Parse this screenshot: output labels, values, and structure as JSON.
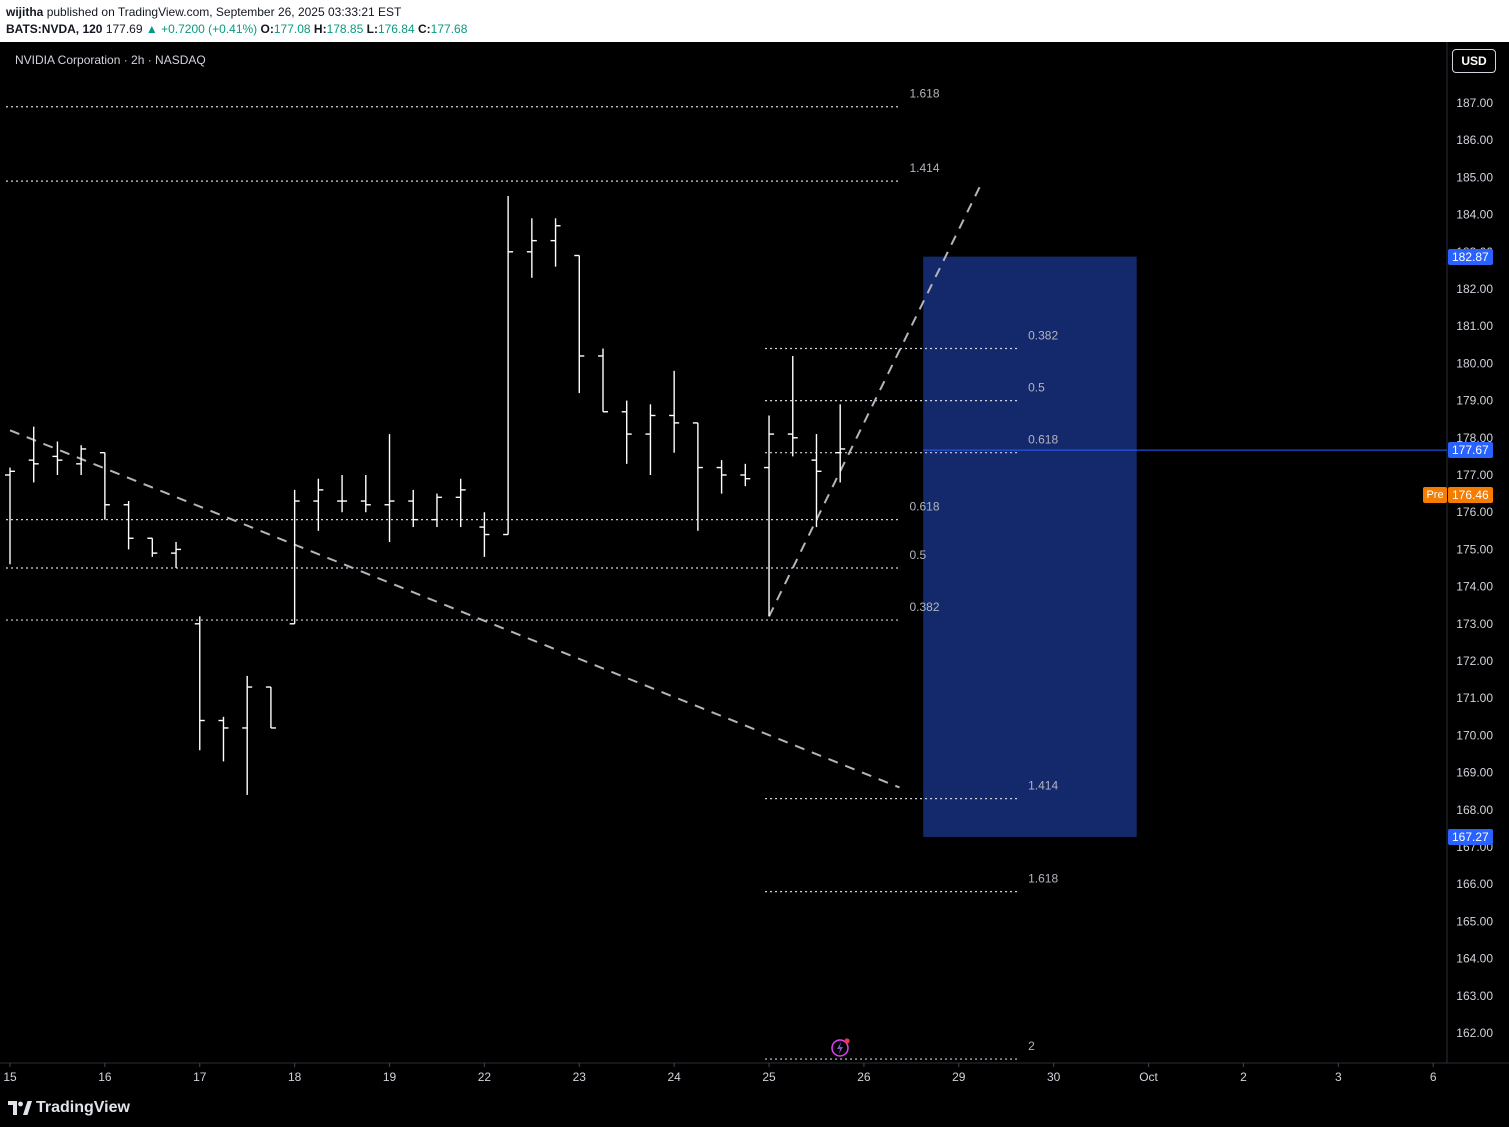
{
  "header": {
    "author": "wijitha",
    "published_text": "published on TradingView.com, September 26, 2025 03:33:21 EST",
    "symbol": "BATS:NVDA, 120",
    "last": "177.69",
    "change_arrow": "▲",
    "change": "+0.7200 (+0.41%)",
    "o_label": "O:",
    "o": "177.08",
    "h_label": "H:",
    "h": "178.85",
    "l_label": "L:",
    "l": "176.84",
    "c_label": "C:",
    "c": "177.68"
  },
  "legend_title": "NVIDIA Corporation · 2h · NASDAQ",
  "currency_button": "USD",
  "brand": "TradingView",
  "colors": {
    "up": "#089981",
    "box": "#14296b",
    "label_blue": "#2962ff",
    "pre_orange": "#f57c00"
  },
  "price_labels": {
    "box_top": "182.87",
    "current": "177.67",
    "pre_tag": "Pre",
    "pre": "176.46",
    "box_bottom": "167.27"
  },
  "chart_data": {
    "type": "ohlc",
    "timeframe": "2h",
    "ylim": [
      161.5,
      188.0
    ],
    "y_ticks": [
      162,
      163,
      164,
      165,
      166,
      167,
      168,
      169,
      170,
      171,
      172,
      173,
      174,
      175,
      176,
      177,
      178,
      179,
      180,
      181,
      182,
      183,
      184,
      185,
      186,
      187
    ],
    "y_tick_labels": [
      "162.00",
      "163.00",
      "164.00",
      "165.00",
      "166.00",
      "167.00",
      "168.00",
      "169.00",
      "170.00",
      "171.00",
      "172.00",
      "173.00",
      "174.00",
      "175.00",
      "176.00",
      "177.00",
      "178.00",
      "179.00",
      "180.00",
      "181.00",
      "182.00",
      "183.00",
      "184.00",
      "185.00",
      "186.00",
      "187.00"
    ],
    "x_ticks": [
      {
        "i": 0,
        "label": "15"
      },
      {
        "i": 4,
        "label": "16"
      },
      {
        "i": 8,
        "label": "17"
      },
      {
        "i": 12,
        "label": "18"
      },
      {
        "i": 16,
        "label": "19"
      },
      {
        "i": 20,
        "label": "22"
      },
      {
        "i": 24,
        "label": "23"
      },
      {
        "i": 28,
        "label": "24"
      },
      {
        "i": 32,
        "label": "25"
      },
      {
        "i": 36,
        "label": "26"
      },
      {
        "i": 40,
        "label": "29"
      },
      {
        "i": 44,
        "label": "30"
      },
      {
        "i": 48,
        "label": "Oct"
      },
      {
        "i": 52,
        "label": "2"
      },
      {
        "i": 56,
        "label": "3"
      },
      {
        "i": 60,
        "label": "6"
      }
    ],
    "bars": [
      {
        "o": 177.0,
        "h": 177.2,
        "l": 174.6,
        "c": 177.1
      },
      {
        "o": 177.4,
        "h": 178.3,
        "l": 176.8,
        "c": 177.3
      },
      {
        "o": 177.5,
        "h": 177.9,
        "l": 177.0,
        "c": 177.4
      },
      {
        "o": 177.3,
        "h": 177.8,
        "l": 177.0,
        "c": 177.7
      },
      {
        "o": 177.6,
        "h": 177.5,
        "l": 175.8,
        "c": 176.2
      },
      {
        "o": 176.2,
        "h": 176.3,
        "l": 175.0,
        "c": 175.3
      },
      {
        "o": 175.3,
        "h": 175.2,
        "l": 174.8,
        "c": 174.9
      },
      {
        "o": 174.9,
        "h": 175.2,
        "l": 174.5,
        "c": 175.0
      },
      {
        "o": 173.0,
        "h": 173.2,
        "l": 169.6,
        "c": 170.4
      },
      {
        "o": 170.4,
        "h": 170.5,
        "l": 169.3,
        "c": 170.2
      },
      {
        "o": 170.2,
        "h": 171.6,
        "l": 168.4,
        "c": 171.3
      },
      {
        "o": 171.3,
        "h": 171.3,
        "l": 170.2,
        "c": 170.2
      },
      {
        "o": 173.0,
        "h": 176.6,
        "l": 173.0,
        "c": 176.3
      },
      {
        "o": 176.3,
        "h": 176.9,
        "l": 175.5,
        "c": 176.6
      },
      {
        "o": 176.3,
        "h": 177.0,
        "l": 176.0,
        "c": 176.3
      },
      {
        "o": 176.3,
        "h": 177.0,
        "l": 176.0,
        "c": 176.2
      },
      {
        "o": 176.2,
        "h": 178.1,
        "l": 175.2,
        "c": 176.3
      },
      {
        "o": 176.3,
        "h": 176.6,
        "l": 175.6,
        "c": 175.8
      },
      {
        "o": 175.8,
        "h": 176.5,
        "l": 175.6,
        "c": 176.4
      },
      {
        "o": 176.4,
        "h": 176.9,
        "l": 175.6,
        "c": 176.6
      },
      {
        "o": 175.6,
        "h": 176.0,
        "l": 174.8,
        "c": 175.4
      },
      {
        "o": 175.4,
        "h": 184.5,
        "l": 175.4,
        "c": 183.0
      },
      {
        "o": 183.0,
        "h": 183.9,
        "l": 182.3,
        "c": 183.3
      },
      {
        "o": 183.3,
        "h": 183.9,
        "l": 182.6,
        "c": 183.7
      },
      {
        "o": 182.9,
        "h": 182.9,
        "l": 179.2,
        "c": 180.2
      },
      {
        "o": 180.2,
        "h": 180.4,
        "l": 178.7,
        "c": 178.7
      },
      {
        "o": 178.7,
        "h": 179.0,
        "l": 177.3,
        "c": 178.1
      },
      {
        "o": 178.1,
        "h": 178.9,
        "l": 177.0,
        "c": 178.6
      },
      {
        "o": 178.6,
        "h": 179.8,
        "l": 177.6,
        "c": 178.4
      },
      {
        "o": 178.4,
        "h": 178.4,
        "l": 175.5,
        "c": 177.2
      },
      {
        "o": 177.2,
        "h": 177.4,
        "l": 176.5,
        "c": 177.0
      },
      {
        "o": 177.0,
        "h": 177.3,
        "l": 176.7,
        "c": 176.9
      },
      {
        "o": 177.2,
        "h": 178.6,
        "l": 173.2,
        "c": 178.1
      },
      {
        "o": 178.1,
        "h": 180.2,
        "l": 177.5,
        "c": 178.0
      },
      {
        "o": 177.4,
        "h": 178.1,
        "l": 175.6,
        "c": 177.1
      },
      {
        "o": 177.6,
        "h": 178.9,
        "l": 176.8,
        "c": 177.7
      }
    ],
    "trend_lines": [
      {
        "name": "descending",
        "points": [
          [
            0,
            178.2
          ],
          [
            37.5,
            168.6
          ]
        ]
      },
      {
        "name": "ascending",
        "points": [
          [
            32,
            173.2
          ],
          [
            41,
            184.9
          ]
        ]
      }
    ],
    "fib_left": {
      "x_range": [
        0,
        37.5
      ],
      "levels": [
        {
          "label": "1.618",
          "price": 186.9
        },
        {
          "label": "1.414",
          "price": 184.9
        },
        {
          "label": "0.618",
          "price": 175.8
        },
        {
          "label": "0.5",
          "price": 174.5
        },
        {
          "label": "0.382",
          "price": 173.1
        }
      ]
    },
    "fib_right": {
      "x_range": [
        32,
        42.5
      ],
      "levels": [
        {
          "label": "0.382",
          "price": 180.4
        },
        {
          "label": "0.5",
          "price": 179.0
        },
        {
          "label": "0.618",
          "price": 177.6
        },
        {
          "label": "1.414",
          "price": 168.3
        },
        {
          "label": "1.618",
          "price": 165.8
        },
        {
          "label": "2",
          "price": 161.3
        }
      ]
    },
    "box": {
      "x_range": [
        38.5,
        47.5
      ],
      "top": 182.87,
      "bottom": 167.27
    },
    "current_price": 177.67,
    "pre_price": 176.46
  }
}
